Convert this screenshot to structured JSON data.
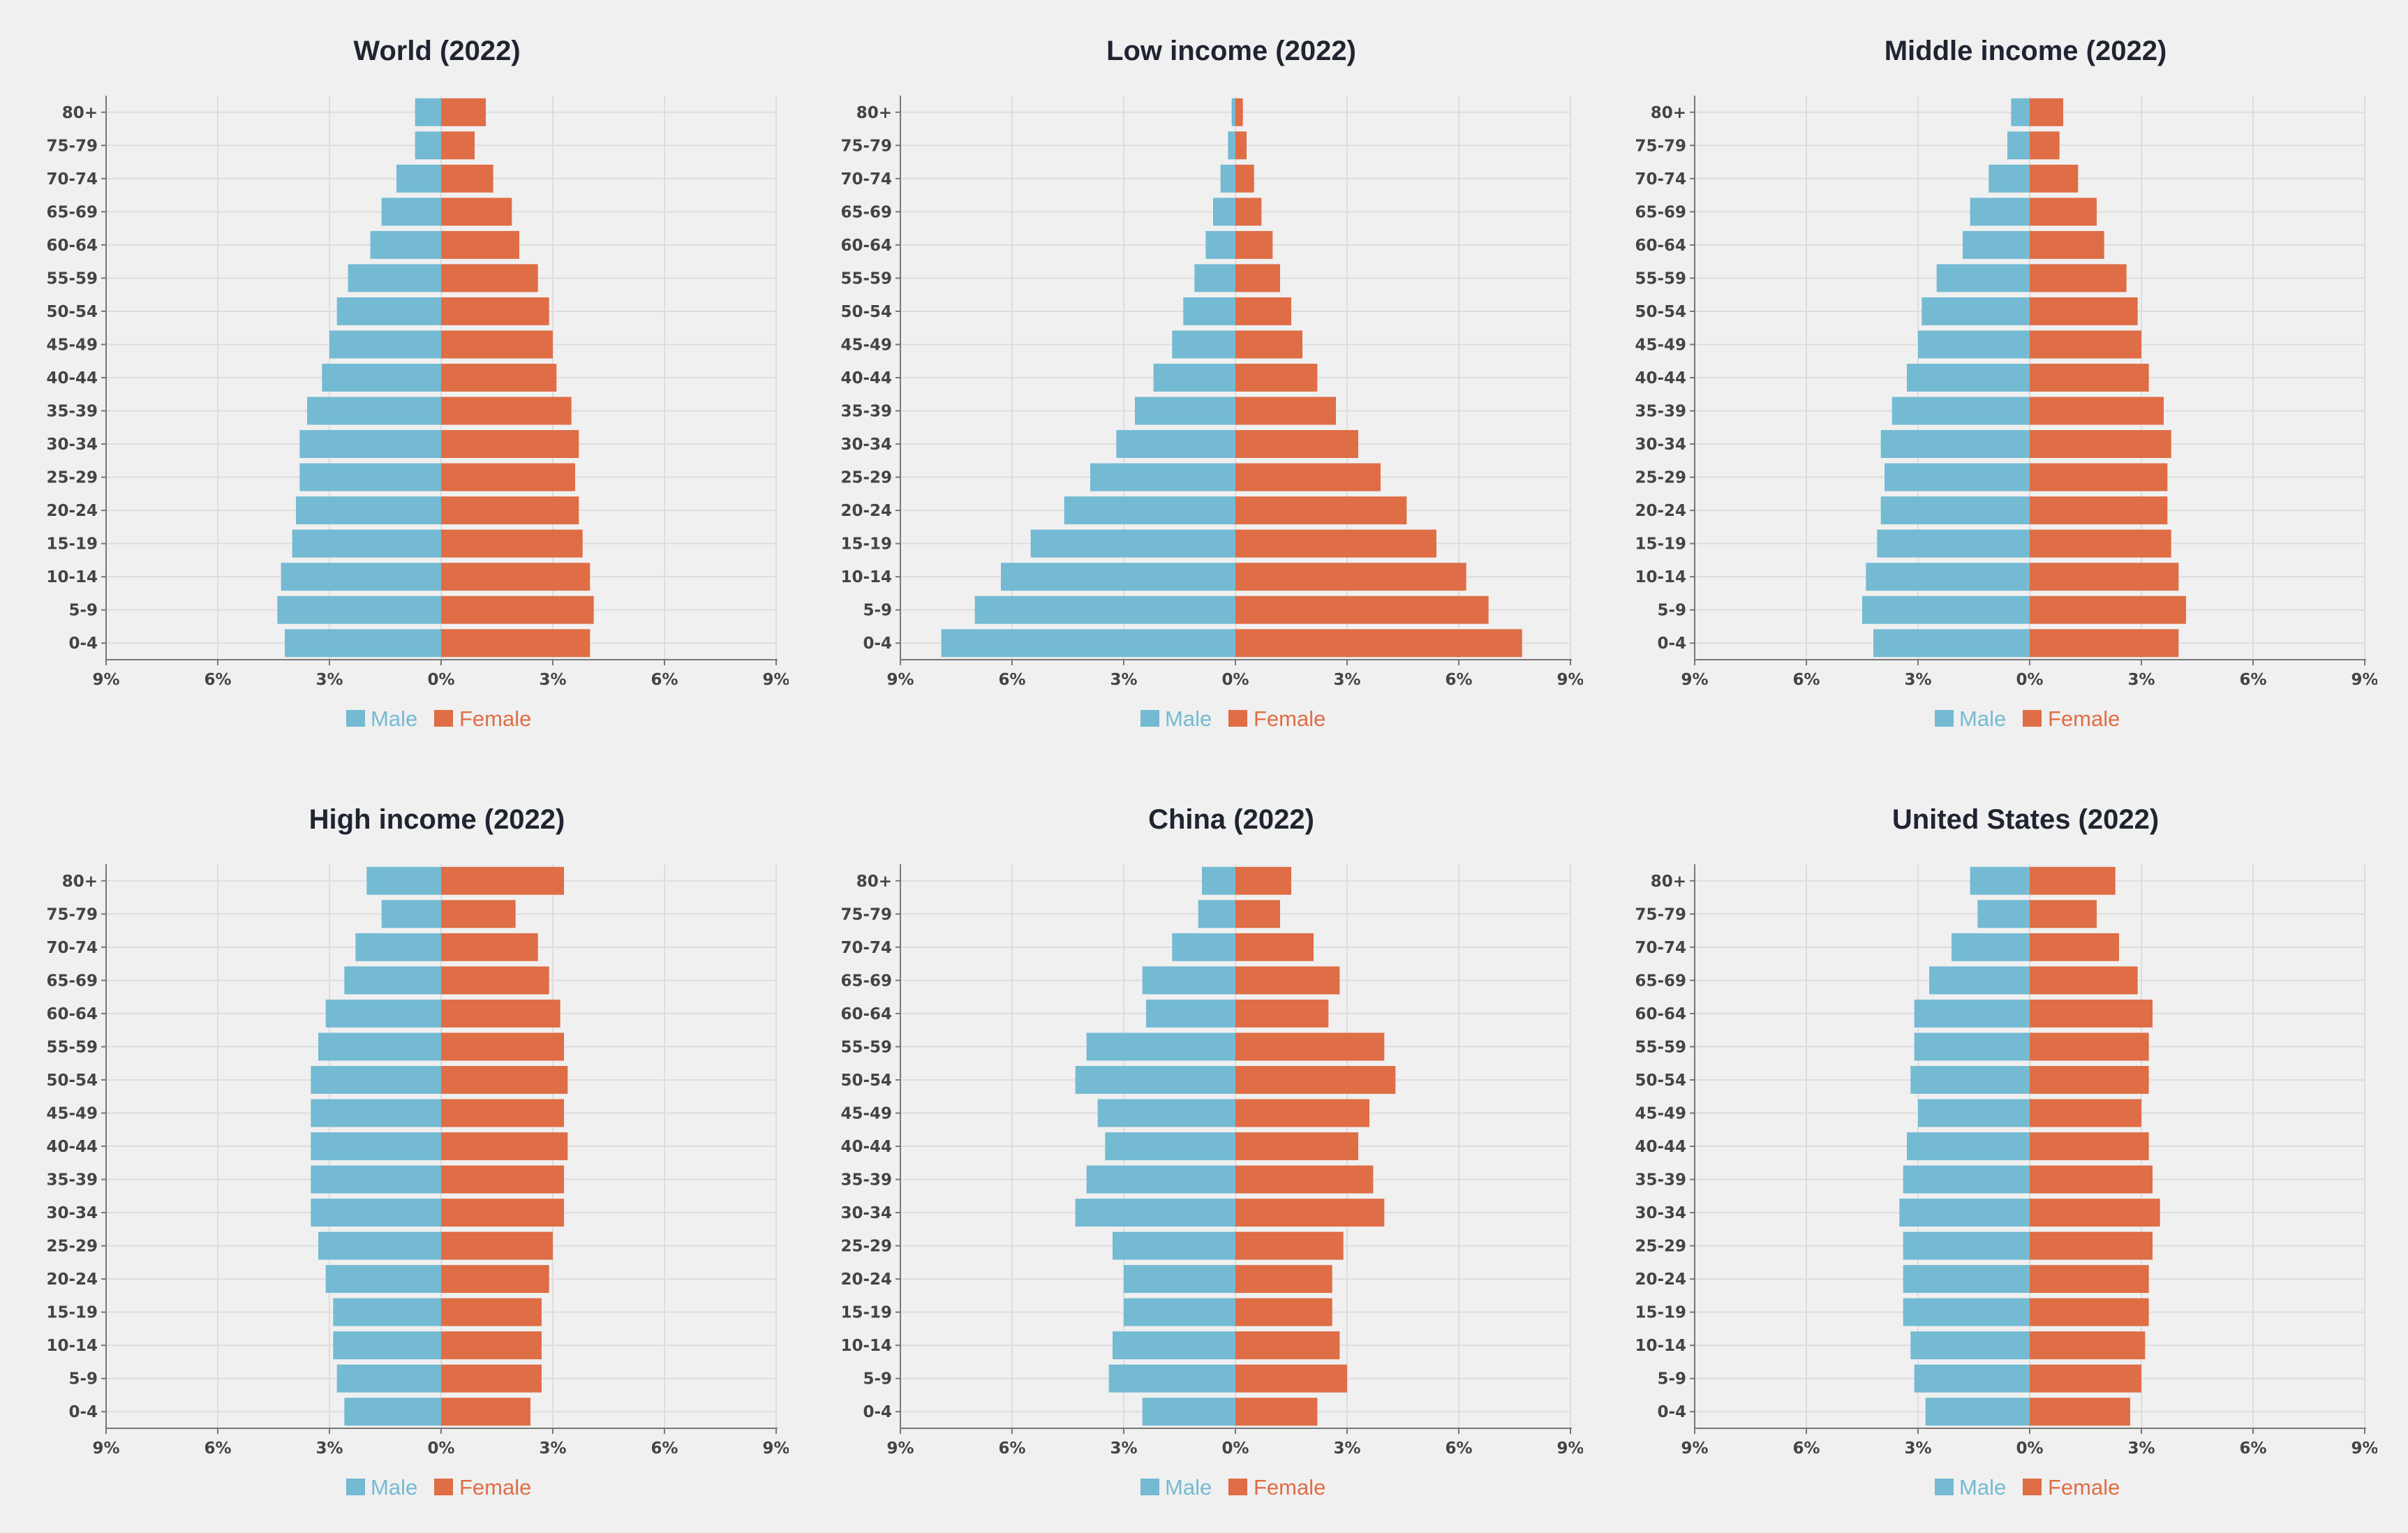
{
  "colors": {
    "male": "#74bad3",
    "female": "#df6d46",
    "background": "#f0f0f0",
    "grid": "#dddddd",
    "axis": "#777777"
  },
  "legend": {
    "male": "Male",
    "female": "Female"
  },
  "chart_data": [
    {
      "type": "bar",
      "title": "World (2022)",
      "categories": [
        "80+",
        "75-79",
        "70-74",
        "65-69",
        "60-64",
        "55-59",
        "50-54",
        "45-49",
        "40-44",
        "35-39",
        "30-34",
        "25-29",
        "20-24",
        "15-19",
        "10-14",
        "5-9",
        "0-4"
      ],
      "xlim": [
        -9,
        9
      ],
      "xticks": [
        -9,
        -6,
        -3,
        0,
        3,
        6,
        9
      ],
      "xtick_labels": [
        "9%",
        "6%",
        "3%",
        "0%",
        "3%",
        "6%",
        "9%"
      ],
      "series": [
        {
          "name": "Male",
          "values": [
            -0.7,
            -0.7,
            -1.2,
            -1.6,
            -1.9,
            -2.5,
            -2.8,
            -3.0,
            -3.2,
            -3.6,
            -3.8,
            -3.8,
            -3.9,
            -4.0,
            -4.3,
            -4.4,
            -4.2
          ]
        },
        {
          "name": "Female",
          "values": [
            1.2,
            0.9,
            1.4,
            1.9,
            2.1,
            2.6,
            2.9,
            3.0,
            3.1,
            3.5,
            3.7,
            3.6,
            3.7,
            3.8,
            4.0,
            4.1,
            4.0
          ]
        }
      ],
      "legend_position": "bottom-center"
    },
    {
      "type": "bar",
      "title": "Low income (2022)",
      "categories": [
        "80+",
        "75-79",
        "70-74",
        "65-69",
        "60-64",
        "55-59",
        "50-54",
        "45-49",
        "40-44",
        "35-39",
        "30-34",
        "25-29",
        "20-24",
        "15-19",
        "10-14",
        "5-9",
        "0-4"
      ],
      "xlim": [
        -9,
        9
      ],
      "xticks": [
        -9,
        -6,
        -3,
        0,
        3,
        6,
        9
      ],
      "xtick_labels": [
        "9%",
        "6%",
        "3%",
        "0%",
        "3%",
        "6%",
        "9%"
      ],
      "series": [
        {
          "name": "Male",
          "values": [
            -0.1,
            -0.2,
            -0.4,
            -0.6,
            -0.8,
            -1.1,
            -1.4,
            -1.7,
            -2.2,
            -2.7,
            -3.2,
            -3.9,
            -4.6,
            -5.5,
            -6.3,
            -7.0,
            -7.9
          ]
        },
        {
          "name": "Female",
          "values": [
            0.2,
            0.3,
            0.5,
            0.7,
            1.0,
            1.2,
            1.5,
            1.8,
            2.2,
            2.7,
            3.3,
            3.9,
            4.6,
            5.4,
            6.2,
            6.8,
            7.7
          ]
        }
      ],
      "legend_position": "bottom-center"
    },
    {
      "type": "bar",
      "title": "Middle income (2022)",
      "categories": [
        "80+",
        "75-79",
        "70-74",
        "65-69",
        "60-64",
        "55-59",
        "50-54",
        "45-49",
        "40-44",
        "35-39",
        "30-34",
        "25-29",
        "20-24",
        "15-19",
        "10-14",
        "5-9",
        "0-4"
      ],
      "xlim": [
        -9,
        9
      ],
      "xticks": [
        -9,
        -6,
        -3,
        0,
        3,
        6,
        9
      ],
      "xtick_labels": [
        "9%",
        "6%",
        "3%",
        "0%",
        "3%",
        "6%",
        "9%"
      ],
      "series": [
        {
          "name": "Male",
          "values": [
            -0.5,
            -0.6,
            -1.1,
            -1.6,
            -1.8,
            -2.5,
            -2.9,
            -3.0,
            -3.3,
            -3.7,
            -4.0,
            -3.9,
            -4.0,
            -4.1,
            -4.4,
            -4.5,
            -4.2
          ]
        },
        {
          "name": "Female",
          "values": [
            0.9,
            0.8,
            1.3,
            1.8,
            2.0,
            2.6,
            2.9,
            3.0,
            3.2,
            3.6,
            3.8,
            3.7,
            3.7,
            3.8,
            4.0,
            4.2,
            4.0
          ]
        }
      ],
      "legend_position": "bottom-center"
    },
    {
      "type": "bar",
      "title": "High income (2022)",
      "categories": [
        "80+",
        "75-79",
        "70-74",
        "65-69",
        "60-64",
        "55-59",
        "50-54",
        "45-49",
        "40-44",
        "35-39",
        "30-34",
        "25-29",
        "20-24",
        "15-19",
        "10-14",
        "5-9",
        "0-4"
      ],
      "xlim": [
        -9,
        9
      ],
      "xticks": [
        -9,
        -6,
        -3,
        0,
        3,
        6,
        9
      ],
      "xtick_labels": [
        "9%",
        "6%",
        "3%",
        "0%",
        "3%",
        "6%",
        "9%"
      ],
      "series": [
        {
          "name": "Male",
          "values": [
            -2.0,
            -1.6,
            -2.3,
            -2.6,
            -3.1,
            -3.3,
            -3.5,
            -3.5,
            -3.5,
            -3.5,
            -3.5,
            -3.3,
            -3.1,
            -2.9,
            -2.9,
            -2.8,
            -2.6
          ]
        },
        {
          "name": "Female",
          "values": [
            3.3,
            2.0,
            2.6,
            2.9,
            3.2,
            3.3,
            3.4,
            3.3,
            3.4,
            3.3,
            3.3,
            3.0,
            2.9,
            2.7,
            2.7,
            2.7,
            2.4
          ]
        }
      ],
      "legend_position": "bottom-center"
    },
    {
      "type": "bar",
      "title": "China (2022)",
      "categories": [
        "80+",
        "75-79",
        "70-74",
        "65-69",
        "60-64",
        "55-59",
        "50-54",
        "45-49",
        "40-44",
        "35-39",
        "30-34",
        "25-29",
        "20-24",
        "15-19",
        "10-14",
        "5-9",
        "0-4"
      ],
      "xlim": [
        -9,
        9
      ],
      "xticks": [
        -9,
        -6,
        -3,
        0,
        3,
        6,
        9
      ],
      "xtick_labels": [
        "9%",
        "6%",
        "3%",
        "0%",
        "3%",
        "6%",
        "9%"
      ],
      "series": [
        {
          "name": "Male",
          "values": [
            -0.9,
            -1.0,
            -1.7,
            -2.5,
            -2.4,
            -4.0,
            -4.3,
            -3.7,
            -3.5,
            -4.0,
            -4.3,
            -3.3,
            -3.0,
            -3.0,
            -3.3,
            -3.4,
            -2.5
          ]
        },
        {
          "name": "Female",
          "values": [
            1.5,
            1.2,
            2.1,
            2.8,
            2.5,
            4.0,
            4.3,
            3.6,
            3.3,
            3.7,
            4.0,
            2.9,
            2.6,
            2.6,
            2.8,
            3.0,
            2.2
          ]
        }
      ],
      "legend_position": "bottom-center"
    },
    {
      "type": "bar",
      "title": "United States (2022)",
      "categories": [
        "80+",
        "75-79",
        "70-74",
        "65-69",
        "60-64",
        "55-59",
        "50-54",
        "45-49",
        "40-44",
        "35-39",
        "30-34",
        "25-29",
        "20-24",
        "15-19",
        "10-14",
        "5-9",
        "0-4"
      ],
      "xlim": [
        -9,
        9
      ],
      "xticks": [
        -9,
        -6,
        -3,
        0,
        3,
        6,
        9
      ],
      "xtick_labels": [
        "9%",
        "6%",
        "3%",
        "0%",
        "3%",
        "6%",
        "9%"
      ],
      "series": [
        {
          "name": "Male",
          "values": [
            -1.6,
            -1.4,
            -2.1,
            -2.7,
            -3.1,
            -3.1,
            -3.2,
            -3.0,
            -3.3,
            -3.4,
            -3.5,
            -3.4,
            -3.4,
            -3.4,
            -3.2,
            -3.1,
            -2.8
          ]
        },
        {
          "name": "Female",
          "values": [
            2.3,
            1.8,
            2.4,
            2.9,
            3.3,
            3.2,
            3.2,
            3.0,
            3.2,
            3.3,
            3.5,
            3.3,
            3.2,
            3.2,
            3.1,
            3.0,
            2.7
          ]
        }
      ],
      "legend_position": "bottom-center"
    }
  ]
}
